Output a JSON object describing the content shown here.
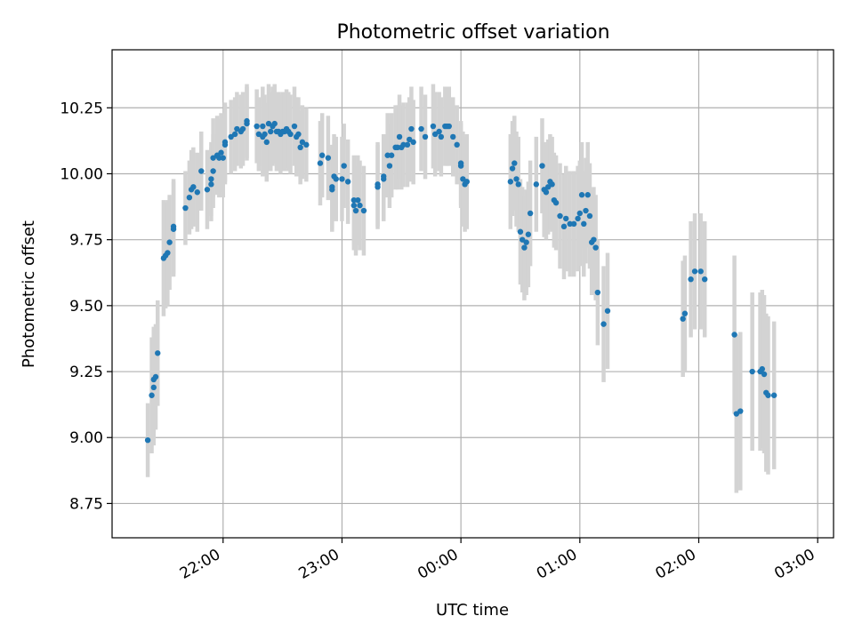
{
  "chart_data": {
    "type": "scatter",
    "title": "Photometric offset variation",
    "xlabel": "UTC time",
    "ylabel": "Photometric offset",
    "xlim": [
      "21:04",
      "03:08"
    ],
    "ylim": [
      8.62,
      10.47
    ],
    "grid": true,
    "x_tick_labels": [
      "22:00",
      "23:00",
      "00:00",
      "01:00",
      "02:00",
      "03:00"
    ],
    "x_ticks": [
      "22:00",
      "23:00",
      "00:00",
      "01:00",
      "02:00",
      "03:00"
    ],
    "y_ticks": [
      8.75,
      9.0,
      9.25,
      9.5,
      9.75,
      10.0,
      10.25
    ],
    "y_tick_labels": [
      "8.75",
      "9.00",
      "9.25",
      "9.50",
      "9.75",
      "10.00",
      "10.25"
    ],
    "colors": {
      "point": "#1f77b4",
      "errorbar": "#d3d3d3",
      "grid": "#b0b0b0"
    },
    "points": [
      {
        "t": "21:22",
        "y": 8.99,
        "e": 0.14
      },
      {
        "t": "21:24",
        "y": 9.16,
        "e": 0.22
      },
      {
        "t": "21:25",
        "y": 9.19,
        "e": 0.22
      },
      {
        "t": "21:25",
        "y": 9.22,
        "e": 0.2
      },
      {
        "t": "21:26",
        "y": 9.23,
        "e": 0.2
      },
      {
        "t": "21:27",
        "y": 9.32,
        "e": 0.2
      },
      {
        "t": "21:30",
        "y": 9.68,
        "e": 0.22
      },
      {
        "t": "21:31",
        "y": 9.69,
        "e": 0.2
      },
      {
        "t": "21:32",
        "y": 9.7,
        "e": 0.2
      },
      {
        "t": "21:33",
        "y": 9.74,
        "e": 0.18
      },
      {
        "t": "21:35",
        "y": 9.79,
        "e": 0.18
      },
      {
        "t": "21:35",
        "y": 9.8,
        "e": 0.18
      },
      {
        "t": "21:41",
        "y": 9.87,
        "e": 0.14
      },
      {
        "t": "21:43",
        "y": 9.91,
        "e": 0.14
      },
      {
        "t": "21:44",
        "y": 9.94,
        "e": 0.15
      },
      {
        "t": "21:45",
        "y": 9.95,
        "e": 0.15
      },
      {
        "t": "21:47",
        "y": 9.93,
        "e": 0.15
      },
      {
        "t": "21:49",
        "y": 10.01,
        "e": 0.15
      },
      {
        "t": "21:52",
        "y": 9.94,
        "e": 0.15
      },
      {
        "t": "21:54",
        "y": 9.98,
        "e": 0.14
      },
      {
        "t": "21:54",
        "y": 9.96,
        "e": 0.14
      },
      {
        "t": "21:55",
        "y": 10.01,
        "e": 0.14
      },
      {
        "t": "21:55",
        "y": 10.06,
        "e": 0.15
      },
      {
        "t": "21:57",
        "y": 10.07,
        "e": 0.15
      },
      {
        "t": "21:58",
        "y": 10.06,
        "e": 0.15
      },
      {
        "t": "21:59",
        "y": 10.08,
        "e": 0.15
      },
      {
        "t": "22:00",
        "y": 10.06,
        "e": 0.15
      },
      {
        "t": "22:01",
        "y": 10.11,
        "e": 0.15
      },
      {
        "t": "22:01",
        "y": 10.12,
        "e": 0.15
      },
      {
        "t": "22:04",
        "y": 10.14,
        "e": 0.14
      },
      {
        "t": "22:06",
        "y": 10.15,
        "e": 0.14
      },
      {
        "t": "22:07",
        "y": 10.17,
        "e": 0.14
      },
      {
        "t": "22:09",
        "y": 10.16,
        "e": 0.14
      },
      {
        "t": "22:10",
        "y": 10.17,
        "e": 0.14
      },
      {
        "t": "22:12",
        "y": 10.19,
        "e": 0.14
      },
      {
        "t": "22:12",
        "y": 10.2,
        "e": 0.14
      },
      {
        "t": "22:17",
        "y": 10.18,
        "e": 0.14
      },
      {
        "t": "22:18",
        "y": 10.15,
        "e": 0.14
      },
      {
        "t": "22:20",
        "y": 10.18,
        "e": 0.15
      },
      {
        "t": "22:20",
        "y": 10.14,
        "e": 0.15
      },
      {
        "t": "22:21",
        "y": 10.15,
        "e": 0.15
      },
      {
        "t": "22:22",
        "y": 10.12,
        "e": 0.15
      },
      {
        "t": "22:23",
        "y": 10.19,
        "e": 0.15
      },
      {
        "t": "22:24",
        "y": 10.16,
        "e": 0.15
      },
      {
        "t": "22:25",
        "y": 10.18,
        "e": 0.15
      },
      {
        "t": "22:26",
        "y": 10.19,
        "e": 0.15
      },
      {
        "t": "22:27",
        "y": 10.16,
        "e": 0.15
      },
      {
        "t": "22:28",
        "y": 10.16,
        "e": 0.15
      },
      {
        "t": "22:29",
        "y": 10.15,
        "e": 0.15
      },
      {
        "t": "22:30",
        "y": 10.16,
        "e": 0.15
      },
      {
        "t": "22:31",
        "y": 10.16,
        "e": 0.15
      },
      {
        "t": "22:32",
        "y": 10.17,
        "e": 0.15
      },
      {
        "t": "22:33",
        "y": 10.16,
        "e": 0.15
      },
      {
        "t": "22:34",
        "y": 10.15,
        "e": 0.15
      },
      {
        "t": "22:36",
        "y": 10.18,
        "e": 0.15
      },
      {
        "t": "22:37",
        "y": 10.14,
        "e": 0.15
      },
      {
        "t": "22:38",
        "y": 10.15,
        "e": 0.14
      },
      {
        "t": "22:39",
        "y": 10.1,
        "e": 0.14
      },
      {
        "t": "22:40",
        "y": 10.12,
        "e": 0.14
      },
      {
        "t": "22:42",
        "y": 10.11,
        "e": 0.14
      },
      {
        "t": "22:49",
        "y": 10.04,
        "e": 0.16
      },
      {
        "t": "22:50",
        "y": 10.07,
        "e": 0.16
      },
      {
        "t": "22:53",
        "y": 10.06,
        "e": 0.16
      },
      {
        "t": "22:55",
        "y": 9.95,
        "e": 0.16
      },
      {
        "t": "22:55",
        "y": 9.94,
        "e": 0.16
      },
      {
        "t": "22:56",
        "y": 9.99,
        "e": 0.16
      },
      {
        "t": "22:57",
        "y": 9.98,
        "e": 0.16
      },
      {
        "t": "23:00",
        "y": 9.98,
        "e": 0.16
      },
      {
        "t": "23:01",
        "y": 10.03,
        "e": 0.16
      },
      {
        "t": "23:03",
        "y": 9.97,
        "e": 0.16
      },
      {
        "t": "23:06",
        "y": 9.9,
        "e": 0.17
      },
      {
        "t": "23:06",
        "y": 9.88,
        "e": 0.17
      },
      {
        "t": "23:07",
        "y": 9.86,
        "e": 0.17
      },
      {
        "t": "23:08",
        "y": 9.9,
        "e": 0.17
      },
      {
        "t": "23:09",
        "y": 9.88,
        "e": 0.17
      },
      {
        "t": "23:11",
        "y": 9.86,
        "e": 0.17
      },
      {
        "t": "23:18",
        "y": 9.96,
        "e": 0.16
      },
      {
        "t": "23:18",
        "y": 9.95,
        "e": 0.16
      },
      {
        "t": "23:21",
        "y": 9.98,
        "e": 0.16
      },
      {
        "t": "23:21",
        "y": 9.99,
        "e": 0.16
      },
      {
        "t": "23:23",
        "y": 10.07,
        "e": 0.16
      },
      {
        "t": "23:24",
        "y": 10.03,
        "e": 0.16
      },
      {
        "t": "23:25",
        "y": 10.07,
        "e": 0.16
      },
      {
        "t": "23:27",
        "y": 10.1,
        "e": 0.16
      },
      {
        "t": "23:28",
        "y": 10.1,
        "e": 0.16
      },
      {
        "t": "23:29",
        "y": 10.14,
        "e": 0.16
      },
      {
        "t": "23:30",
        "y": 10.1,
        "e": 0.16
      },
      {
        "t": "23:31",
        "y": 10.11,
        "e": 0.16
      },
      {
        "t": "23:33",
        "y": 10.11,
        "e": 0.16
      },
      {
        "t": "23:34",
        "y": 10.13,
        "e": 0.16
      },
      {
        "t": "23:35",
        "y": 10.17,
        "e": 0.16
      },
      {
        "t": "23:36",
        "y": 10.12,
        "e": 0.16
      },
      {
        "t": "23:40",
        "y": 10.17,
        "e": 0.16
      },
      {
        "t": "23:42",
        "y": 10.14,
        "e": 0.16
      },
      {
        "t": "23:46",
        "y": 10.18,
        "e": 0.16
      },
      {
        "t": "23:47",
        "y": 10.15,
        "e": 0.16
      },
      {
        "t": "23:49",
        "y": 10.16,
        "e": 0.15
      },
      {
        "t": "23:50",
        "y": 10.14,
        "e": 0.15
      },
      {
        "t": "23:52",
        "y": 10.18,
        "e": 0.15
      },
      {
        "t": "23:53",
        "y": 10.18,
        "e": 0.15
      },
      {
        "t": "23:54",
        "y": 10.18,
        "e": 0.15
      },
      {
        "t": "23:56",
        "y": 10.14,
        "e": 0.15
      },
      {
        "t": "23:58",
        "y": 10.11,
        "e": 0.15
      },
      {
        "t": "00:00",
        "y": 10.03,
        "e": 0.16
      },
      {
        "t": "00:00",
        "y": 10.04,
        "e": 0.16
      },
      {
        "t": "00:01",
        "y": 9.98,
        "e": 0.18
      },
      {
        "t": "00:02",
        "y": 9.96,
        "e": 0.18
      },
      {
        "t": "00:03",
        "y": 9.97,
        "e": 0.18
      },
      {
        "t": "00:25",
        "y": 9.97,
        "e": 0.18
      },
      {
        "t": "00:26",
        "y": 10.02,
        "e": 0.18
      },
      {
        "t": "00:27",
        "y": 10.04,
        "e": 0.18
      },
      {
        "t": "00:28",
        "y": 9.98,
        "e": 0.18
      },
      {
        "t": "00:29",
        "y": 9.96,
        "e": 0.18
      },
      {
        "t": "00:30",
        "y": 9.78,
        "e": 0.2
      },
      {
        "t": "00:31",
        "y": 9.75,
        "e": 0.2
      },
      {
        "t": "00:32",
        "y": 9.72,
        "e": 0.2
      },
      {
        "t": "00:33",
        "y": 9.74,
        "e": 0.2
      },
      {
        "t": "00:34",
        "y": 9.77,
        "e": 0.2
      },
      {
        "t": "00:35",
        "y": 9.85,
        "e": 0.2
      },
      {
        "t": "00:38",
        "y": 9.96,
        "e": 0.18
      },
      {
        "t": "00:41",
        "y": 10.03,
        "e": 0.18
      },
      {
        "t": "00:42",
        "y": 9.94,
        "e": 0.18
      },
      {
        "t": "00:43",
        "y": 9.93,
        "e": 0.18
      },
      {
        "t": "00:44",
        "y": 9.95,
        "e": 0.18
      },
      {
        "t": "00:45",
        "y": 9.97,
        "e": 0.18
      },
      {
        "t": "00:46",
        "y": 9.96,
        "e": 0.18
      },
      {
        "t": "00:47",
        "y": 9.9,
        "e": 0.18
      },
      {
        "t": "00:48",
        "y": 9.89,
        "e": 0.18
      },
      {
        "t": "00:50",
        "y": 9.84,
        "e": 0.2
      },
      {
        "t": "00:52",
        "y": 9.8,
        "e": 0.2
      },
      {
        "t": "00:53",
        "y": 9.83,
        "e": 0.2
      },
      {
        "t": "00:55",
        "y": 9.81,
        "e": 0.2
      },
      {
        "t": "00:57",
        "y": 9.81,
        "e": 0.2
      },
      {
        "t": "00:59",
        "y": 9.83,
        "e": 0.2
      },
      {
        "t": "01:00",
        "y": 9.85,
        "e": 0.2
      },
      {
        "t": "01:01",
        "y": 9.92,
        "e": 0.2
      },
      {
        "t": "01:02",
        "y": 9.81,
        "e": 0.2
      },
      {
        "t": "01:03",
        "y": 9.86,
        "e": 0.2
      },
      {
        "t": "01:04",
        "y": 9.92,
        "e": 0.2
      },
      {
        "t": "01:05",
        "y": 9.84,
        "e": 0.2
      },
      {
        "t": "01:06",
        "y": 9.74,
        "e": 0.2
      },
      {
        "t": "01:07",
        "y": 9.75,
        "e": 0.2
      },
      {
        "t": "01:08",
        "y": 9.72,
        "e": 0.2
      },
      {
        "t": "01:09",
        "y": 9.55,
        "e": 0.2
      },
      {
        "t": "01:12",
        "y": 9.43,
        "e": 0.22
      },
      {
        "t": "01:14",
        "y": 9.48,
        "e": 0.22
      },
      {
        "t": "01:52",
        "y": 9.45,
        "e": 0.22
      },
      {
        "t": "01:53",
        "y": 9.47,
        "e": 0.22
      },
      {
        "t": "01:56",
        "y": 9.6,
        "e": 0.22
      },
      {
        "t": "01:58",
        "y": 9.63,
        "e": 0.22
      },
      {
        "t": "02:01",
        "y": 9.63,
        "e": 0.22
      },
      {
        "t": "02:03",
        "y": 9.6,
        "e": 0.22
      },
      {
        "t": "02:18",
        "y": 9.39,
        "e": 0.3
      },
      {
        "t": "02:19",
        "y": 9.09,
        "e": 0.3
      },
      {
        "t": "02:21",
        "y": 9.1,
        "e": 0.3
      },
      {
        "t": "02:27",
        "y": 9.25,
        "e": 0.3
      },
      {
        "t": "02:31",
        "y": 9.25,
        "e": 0.3
      },
      {
        "t": "02:32",
        "y": 9.26,
        "e": 0.3
      },
      {
        "t": "02:33",
        "y": 9.24,
        "e": 0.3
      },
      {
        "t": "02:34",
        "y": 9.17,
        "e": 0.3
      },
      {
        "t": "02:35",
        "y": 9.16,
        "e": 0.3
      },
      {
        "t": "02:38",
        "y": 9.16,
        "e": 0.28
      }
    ]
  }
}
